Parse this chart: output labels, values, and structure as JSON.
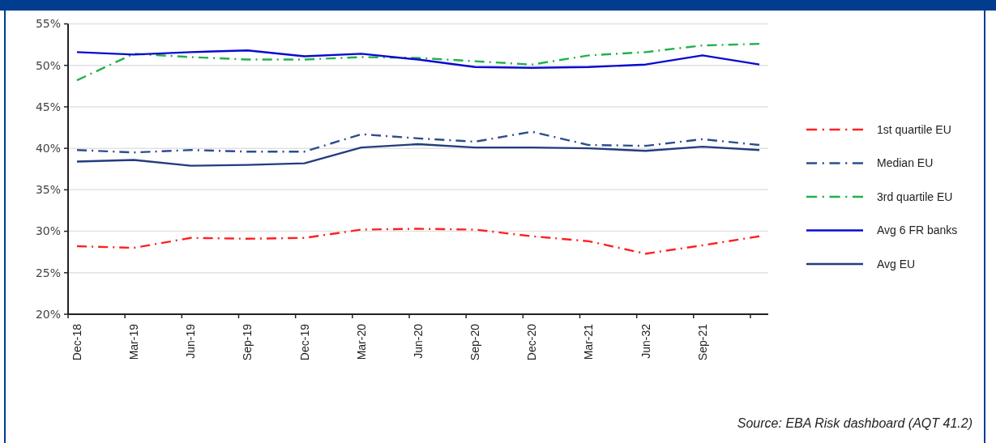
{
  "chart_data": {
    "type": "line",
    "categories": [
      "Dec-18",
      "Mar-19",
      "Jun-19",
      "Sep-19",
      "Dec-19",
      "Mar-20",
      "Jun-20",
      "Sep-20",
      "Dec-20",
      "Mar-21",
      "Jun-32",
      "Sep-21",
      null
    ],
    "series": [
      {
        "name": "1st quartile EU",
        "color": "#ff2020",
        "line_style": "dashed",
        "values": [
          28.2,
          28.0,
          29.2,
          29.1,
          29.2,
          30.2,
          30.3,
          30.2,
          29.4,
          28.8,
          27.3,
          28.3,
          29.4
        ]
      },
      {
        "name": "Median EU",
        "color": "#2e4d8f",
        "line_style": "dashed",
        "values": [
          39.8,
          39.5,
          39.8,
          39.6,
          39.6,
          41.7,
          41.2,
          40.8,
          42.0,
          40.4,
          40.3,
          41.1,
          40.4
        ]
      },
      {
        "name": "3rd quartile EU",
        "color": "#22b14c",
        "line_style": "dashed",
        "values": [
          48.2,
          51.4,
          51.0,
          50.7,
          50.7,
          51.0,
          50.9,
          50.5,
          50.1,
          51.2,
          51.6,
          52.4,
          52.6
        ]
      },
      {
        "name": "Avg 6 FR banks",
        "color": "#0a0ad0",
        "line_style": "solid",
        "values": [
          51.6,
          51.3,
          51.6,
          51.8,
          51.1,
          51.4,
          50.7,
          49.8,
          49.7,
          49.8,
          50.1,
          51.2,
          50.1
        ]
      },
      {
        "name": "Avg EU",
        "color": "#243c7c",
        "line_style": "solid",
        "values": [
          38.4,
          38.6,
          37.9,
          38.0,
          38.2,
          40.1,
          40.5,
          40.1,
          40.1,
          40.0,
          39.7,
          40.2,
          39.8
        ]
      }
    ],
    "ylim": [
      20,
      55
    ],
    "yticks": [
      {
        "value": 20,
        "label": "20%"
      },
      {
        "value": 25,
        "label": "25%"
      },
      {
        "value": 30,
        "label": "30%"
      },
      {
        "value": 35,
        "label": "35%"
      },
      {
        "value": 40,
        "label": "40%"
      },
      {
        "value": 45,
        "label": "45%"
      },
      {
        "value": 50,
        "label": "50%"
      },
      {
        "value": 55,
        "label": "55%"
      }
    ],
    "grid": "y",
    "legend": "right",
    "marker": "none",
    "annotations": [
      "Source: EBA Risk dashboard (AQT 41.2)"
    ]
  }
}
